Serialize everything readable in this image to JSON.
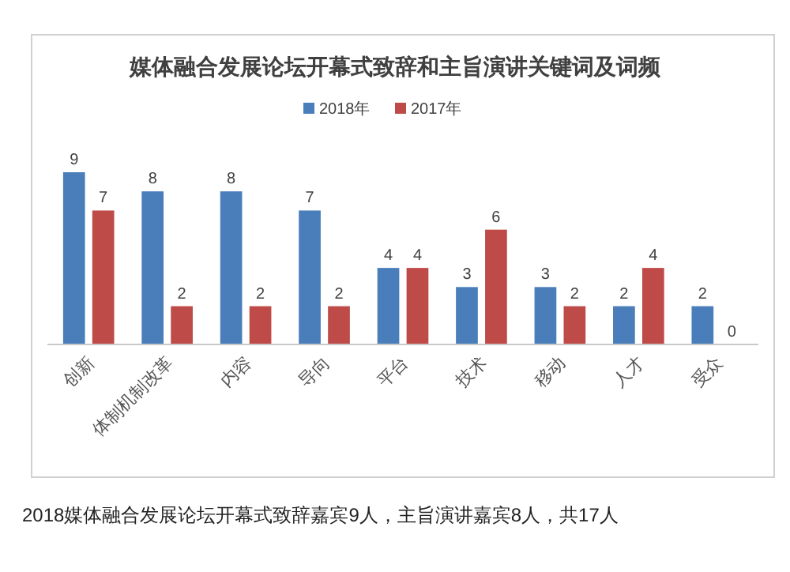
{
  "chart_data": {
    "type": "bar",
    "title": "媒体融合发展论坛开幕式致辞和主旨演讲关键词及词频",
    "categories": [
      "创新",
      "体制机制改革",
      "内容",
      "导向",
      "平台",
      "技术",
      "移动",
      "人才",
      "受众"
    ],
    "series": [
      {
        "name": "2018年",
        "color": "#4a7ebb",
        "values": [
          9,
          8,
          8,
          7,
          4,
          3,
          3,
          2,
          2
        ]
      },
      {
        "name": "2017年",
        "color": "#be4b48",
        "values": [
          7,
          2,
          2,
          2,
          4,
          6,
          2,
          4,
          0
        ]
      }
    ],
    "data_labels": true,
    "relative": false,
    "legend": "top",
    "grid": false,
    "annotations": [
      "2018媒体融合发展论坛开幕式致辞嘉宾9人，主旨演讲嘉宾8人，共17人"
    ]
  }
}
